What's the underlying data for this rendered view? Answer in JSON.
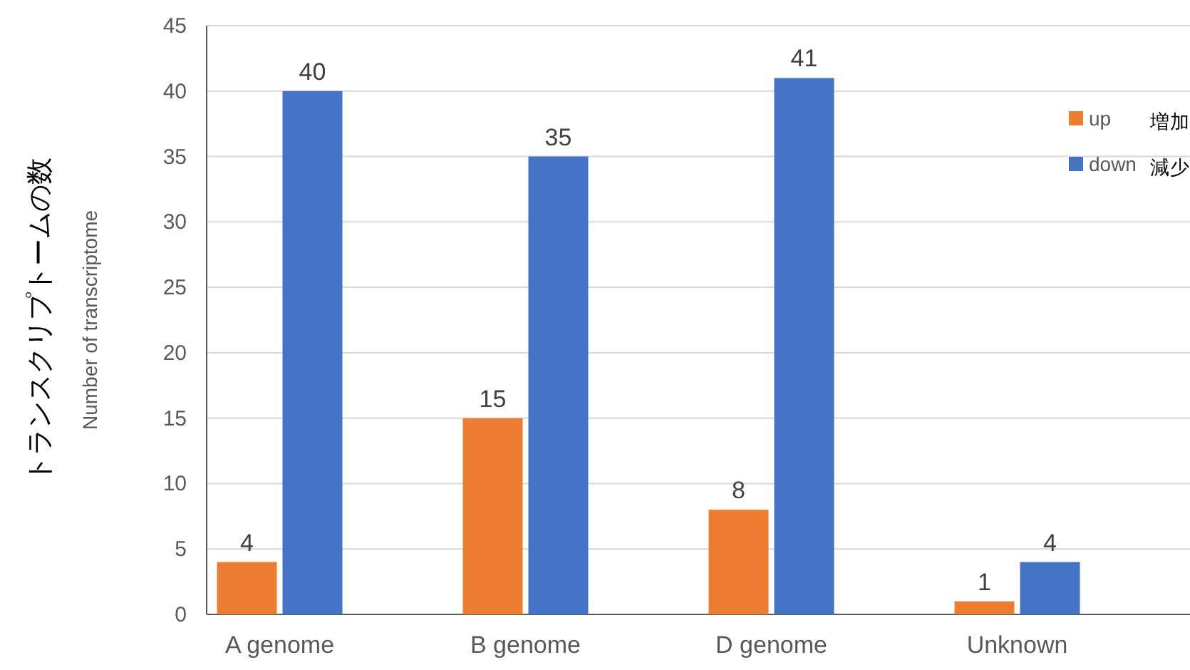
{
  "chart_data": {
    "type": "bar",
    "ylabel": "トランスクリプトームの数",
    "categories": [
      "A genome",
      "B genome",
      "D genome",
      "Unknown"
    ],
    "series": [
      {
        "name": "up",
        "color": "#ed7d31",
        "values": [
          4,
          15,
          8,
          1
        ]
      },
      {
        "name": "down",
        "color": "#4472c4",
        "values": [
          40,
          35,
          41,
          4
        ]
      }
    ],
    "ylim": [
      0,
      45
    ],
    "yticks": [
      0,
      5,
      10,
      15,
      20,
      25,
      30,
      35,
      40,
      45
    ],
    "grid": "y",
    "data_labels": true,
    "legend": "top right",
    "annotations": [
      "Number of transcriptome",
      "増加",
      "減少"
    ]
  }
}
